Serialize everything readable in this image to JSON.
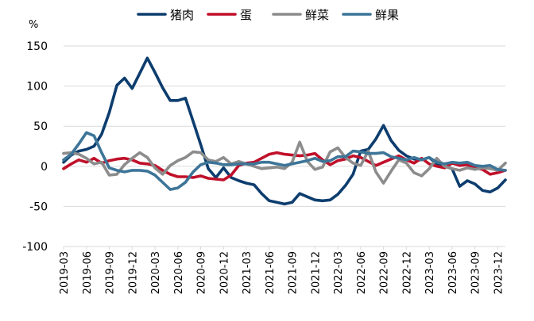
{
  "chart_data": {
    "type": "line",
    "unit_label": "%",
    "ylim": [
      -100,
      150
    ],
    "yticks": [
      150,
      100,
      50,
      0,
      -50,
      -100
    ],
    "grid": true,
    "legend_position": "top",
    "x": [
      "2019-03",
      "2019-04",
      "2019-05",
      "2019-06",
      "2019-07",
      "2019-08",
      "2019-09",
      "2019-10",
      "2019-11",
      "2019-12",
      "2020-01",
      "2020-02",
      "2020-03",
      "2020-04",
      "2020-05",
      "2020-06",
      "2020-07",
      "2020-08",
      "2020-09",
      "2020-10",
      "2020-11",
      "2020-12",
      "2021-01",
      "2021-02",
      "2021-03",
      "2021-04",
      "2021-05",
      "2021-06",
      "2021-07",
      "2021-08",
      "2021-09",
      "2021-10",
      "2021-11",
      "2021-12",
      "2022-01",
      "2022-02",
      "2022-03",
      "2022-04",
      "2022-05",
      "2022-06",
      "2022-07",
      "2022-08",
      "2022-09",
      "2022-10",
      "2022-11",
      "2022-12",
      "2023-01",
      "2023-02",
      "2023-03",
      "2023-04",
      "2023-05",
      "2023-06",
      "2023-07",
      "2023-08",
      "2023-09",
      "2023-10",
      "2023-11",
      "2023-12",
      "2024-01"
    ],
    "xtick_labels": [
      "2019-03",
      "2019-06",
      "2019-09",
      "2019-12",
      "2020-03",
      "2020-06",
      "2020-09",
      "2020-12",
      "2021-03",
      "2021-06",
      "2021-09",
      "2021-12",
      "2022-03",
      "2022-06",
      "2022-09",
      "2022-12",
      "2023-03",
      "2023-06",
      "2023-09",
      "2023-12"
    ],
    "series": [
      {
        "name": "猪肉",
        "color": "#0d3d6e",
        "values": [
          5,
          14,
          19,
          21,
          25,
          40,
          67,
          101,
          110,
          97,
          116,
          135,
          117,
          98,
          82,
          82,
          85,
          56,
          27,
          -3,
          -14,
          -2,
          -14,
          -18,
          -21,
          -23,
          -34,
          -43,
          -45,
          -47,
          -45,
          -34,
          -38,
          -42,
          -43,
          -42,
          -35,
          -24,
          -10,
          19,
          21,
          34,
          51,
          32,
          20,
          13,
          9,
          8,
          11,
          3,
          0,
          -3,
          -25,
          -18,
          -22,
          -30,
          -32,
          -27,
          -17
        ]
      },
      {
        "name": "蛋",
        "color": "#c0102a",
        "values": [
          -3,
          3,
          8,
          5,
          10,
          4,
          7,
          9,
          10,
          8,
          4,
          3,
          1,
          -5,
          -10,
          -13,
          -13,
          -14,
          -12,
          -15,
          -16,
          -17,
          -11,
          1,
          4,
          5,
          10,
          15,
          17,
          15,
          14,
          13,
          14,
          16,
          8,
          2,
          7,
          9,
          13,
          11,
          6,
          1,
          5,
          9,
          13,
          8,
          4,
          10,
          3,
          0,
          -2,
          4,
          1,
          2,
          -2,
          -4,
          -10,
          -8,
          -5
        ]
      },
      {
        "name": "鲜菜",
        "color": "#8c8c8c",
        "values": [
          16,
          17,
          15,
          10,
          3,
          5,
          -11,
          -10,
          2,
          10,
          17,
          11,
          -2,
          -10,
          1,
          7,
          11,
          18,
          17,
          8,
          6,
          11,
          3,
          6,
          3,
          0,
          -3,
          -2,
          -1,
          -3,
          5,
          30,
          6,
          -4,
          -1,
          18,
          23,
          11,
          4,
          1,
          19,
          -7,
          -21,
          -6,
          8,
          4,
          -8,
          -12,
          -3,
          10,
          0,
          -3,
          -5,
          -2,
          -4,
          -2,
          -3,
          -5,
          4
        ]
      },
      {
        "name": "鲜果",
        "color": "#3d7598",
        "values": [
          8,
          15,
          28,
          42,
          38,
          17,
          -2,
          -5,
          -7,
          -5,
          -5,
          -6,
          -11,
          -20,
          -29,
          -27,
          -20,
          -7,
          2,
          5,
          4,
          2,
          2,
          3,
          3,
          3,
          5,
          5,
          3,
          1,
          3,
          5,
          7,
          10,
          6,
          7,
          12,
          12,
          19,
          18,
          16,
          16,
          17,
          12,
          10,
          8,
          11,
          8,
          11,
          5,
          3,
          5,
          4,
          5,
          1,
          0,
          1,
          -4,
          -5
        ]
      }
    ]
  }
}
